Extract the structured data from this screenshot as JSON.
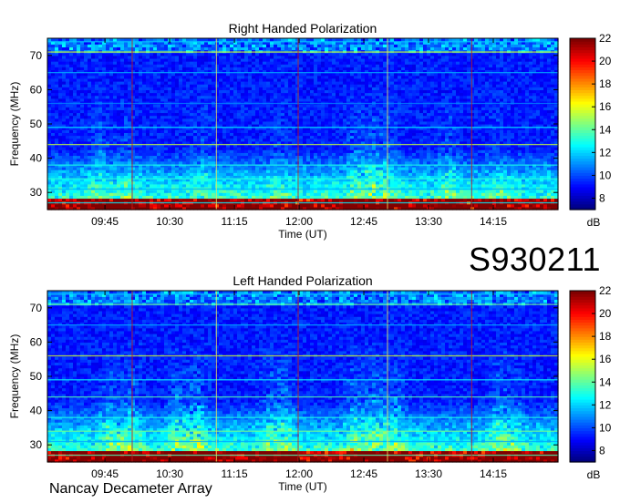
{
  "observation_id": "S930211",
  "instrument": "Nancay Decameter Array",
  "chart_data": [
    {
      "type": "heatmap",
      "title": "Right Handed Polarization",
      "xlabel": "Time (UT)",
      "ylabel": "Frequency (MHz)",
      "x_ticks": [
        "09:45",
        "10:30",
        "11:15",
        "12:00",
        "12:45",
        "13:30",
        "14:15"
      ],
      "y_ticks": [
        30,
        40,
        50,
        60,
        70
      ],
      "xlim": [
        "09:05",
        "15:00"
      ],
      "ylim": [
        25,
        75
      ],
      "colorbar": {
        "label": "dB",
        "ticks": [
          8,
          10,
          12,
          14,
          16,
          18,
          20,
          22
        ],
        "range": [
          7,
          22
        ],
        "colormap": "jet"
      }
    },
    {
      "type": "heatmap",
      "title": "Left Handed Polarization",
      "xlabel": "Time (UT)",
      "ylabel": "Frequency (MHz)",
      "x_ticks": [
        "09:45",
        "10:30",
        "11:15",
        "12:00",
        "12:45",
        "13:30",
        "14:15"
      ],
      "y_ticks": [
        30,
        40,
        50,
        60,
        70
      ],
      "xlim": [
        "09:05",
        "15:00"
      ],
      "ylim": [
        25,
        75
      ],
      "colorbar": {
        "label": "dB",
        "ticks": [
          8,
          10,
          12,
          14,
          16,
          18,
          20,
          22
        ],
        "range": [
          7,
          22
        ],
        "colormap": "jet"
      }
    }
  ]
}
